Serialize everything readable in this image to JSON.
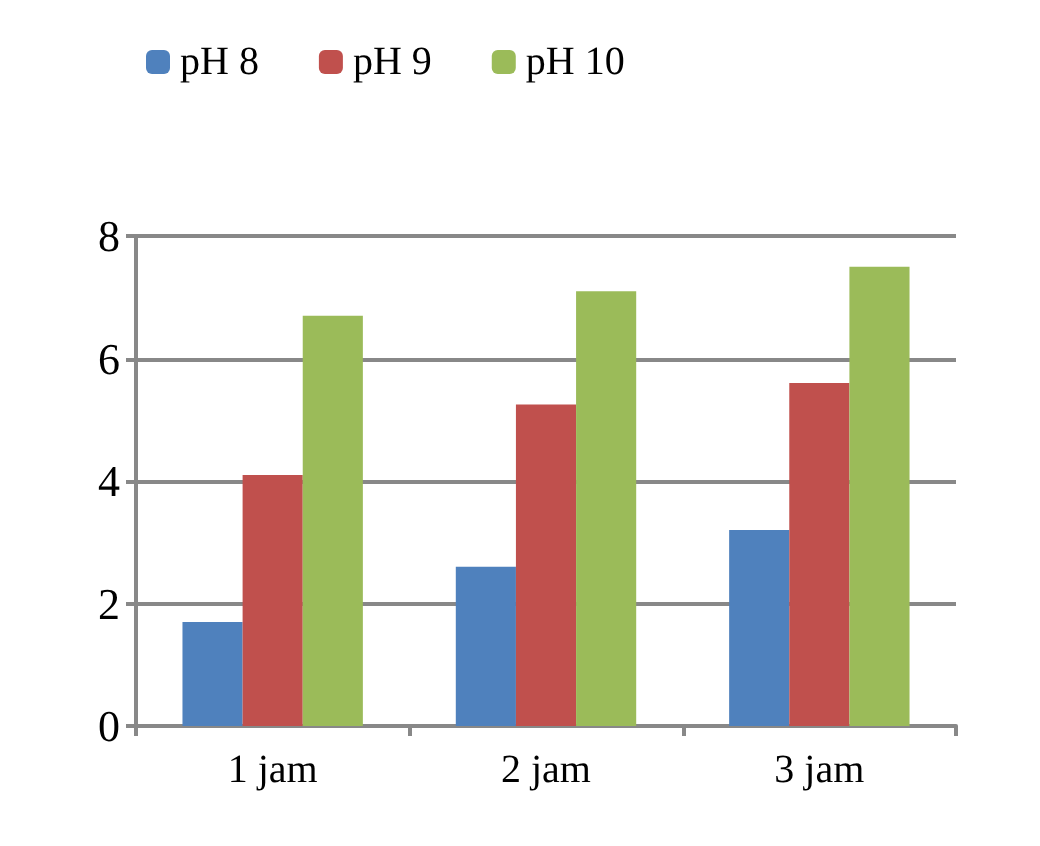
{
  "chart_data": {
    "type": "bar",
    "categories": [
      "1 jam",
      "2 jam",
      "3 jam"
    ],
    "series": [
      {
        "name": "pH 8",
        "color": "#4f81bd",
        "values": [
          1.7,
          2.6,
          3.2
        ]
      },
      {
        "name": "pH 9",
        "color": "#c0504d",
        "values": [
          4.1,
          5.25,
          5.6
        ]
      },
      {
        "name": "pH 10",
        "color": "#9bbb59",
        "values": [
          6.7,
          7.1,
          7.5
        ]
      }
    ],
    "ylim": [
      0,
      8
    ],
    "yticks": [
      0,
      2,
      4,
      6,
      8
    ],
    "grid": "y",
    "legend": "top left"
  }
}
